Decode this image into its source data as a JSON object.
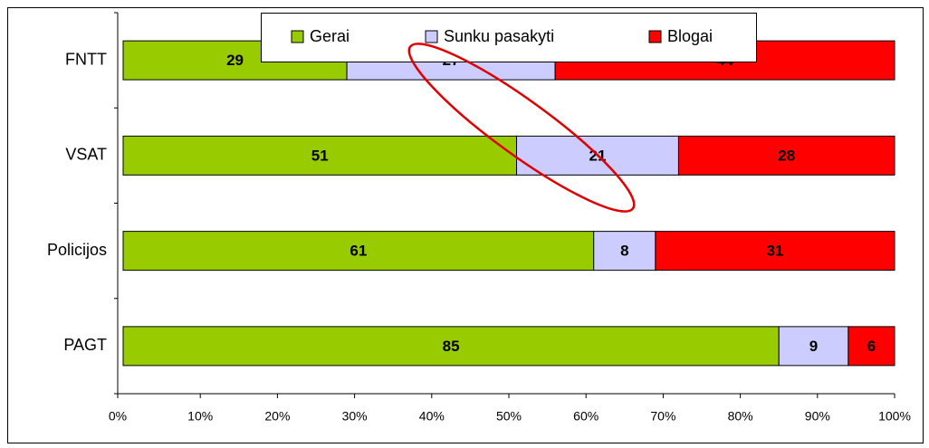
{
  "chart_data": {
    "type": "stacked_barh",
    "categories": [
      "FNTT",
      "VSAT",
      "Policijos",
      "PAGT"
    ],
    "series": [
      {
        "name": "Gerai",
        "color": "#99cc00",
        "values": [
          29,
          51,
          61,
          85
        ]
      },
      {
        "name": "Sunku pasakyti",
        "color": "#ccccff",
        "values": [
          27,
          21,
          8,
          9
        ]
      },
      {
        "name": "Blogai",
        "color": "#ff0000",
        "values": [
          44,
          28,
          31,
          6
        ]
      }
    ],
    "xlim": [
      0,
      100
    ],
    "xticks": [
      {
        "value": 0,
        "label": "0%"
      },
      {
        "value": 10,
        "label": "10%"
      },
      {
        "value": 20,
        "label": "20%"
      },
      {
        "value": 30,
        "label": "30%"
      },
      {
        "value": 40,
        "label": "40%"
      },
      {
        "value": 50,
        "label": "50%"
      },
      {
        "value": 60,
        "label": "60%"
      },
      {
        "value": 70,
        "label": "70%"
      },
      {
        "value": 80,
        "label": "80%"
      },
      {
        "value": 90,
        "label": "90%"
      },
      {
        "value": 100,
        "label": "100%"
      }
    ]
  }
}
